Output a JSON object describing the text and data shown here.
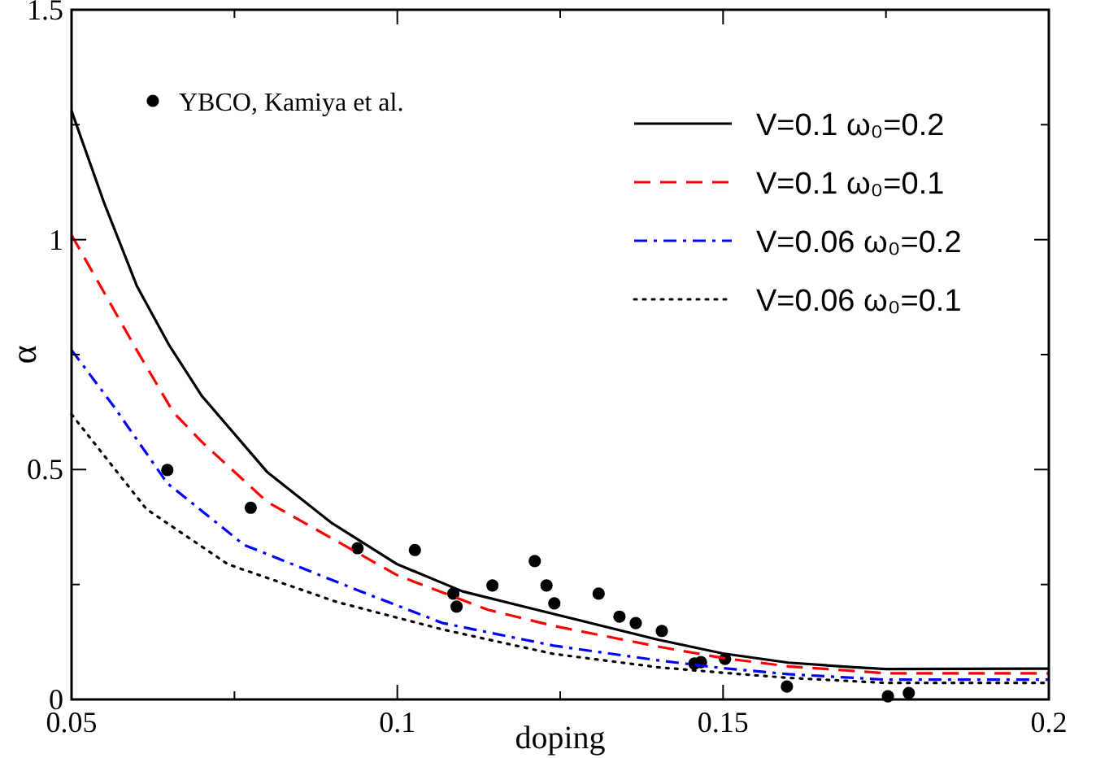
{
  "chart_data": {
    "type": "line",
    "xlabel": "doping",
    "ylabel": "α",
    "xlim": [
      0.05,
      0.2
    ],
    "ylim": [
      0,
      1.5
    ],
    "xticks": [
      0.05,
      {
        "value": 0.075,
        "label": null
      },
      0.1,
      {
        "value": 0.125,
        "label": null
      },
      0.15,
      {
        "value": 0.175,
        "label": null
      },
      0.2
    ],
    "yticks": [
      0,
      {
        "value": 0.25,
        "label": null
      },
      0.5,
      {
        "value": 0.75,
        "label": null
      },
      1,
      {
        "value": 1.25,
        "label": null
      },
      1.5
    ],
    "legend": "top",
    "grid": false,
    "series": [
      {
        "type": "scatter",
        "name": "YBCO, Kamiya et al.",
        "color": "#000000",
        "marker": "circle",
        "x": [
          0.0647,
          0.0775,
          0.0939,
          0.1027,
          0.1086,
          0.1091,
          0.1146,
          0.1211,
          0.1229,
          0.1241,
          0.1309,
          0.1341,
          0.1366,
          0.1406,
          0.1456,
          0.1466,
          0.1503,
          0.1598,
          0.1753,
          0.1785
        ],
        "values": [
          0.499,
          0.417,
          0.329,
          0.325,
          0.23,
          0.202,
          0.248,
          0.301,
          0.248,
          0.209,
          0.23,
          0.18,
          0.166,
          0.149,
          0.078,
          0.081,
          0.088,
          0.028,
          0.007,
          0.014
        ]
      },
      {
        "name": "V=0.1  ω₀=0.2",
        "color": "#000000",
        "line_style": "solid",
        "x": [
          0.05,
          0.055,
          0.06,
          0.065,
          0.07,
          0.08,
          0.09,
          0.1,
          0.11,
          0.12,
          0.13,
          0.14,
          0.15,
          0.16,
          0.17,
          0.175,
          0.2
        ],
        "values": [
          1.28,
          1.08,
          0.9,
          0.77,
          0.66,
          0.495,
          0.383,
          0.294,
          0.235,
          0.2,
          0.165,
          0.13,
          0.1,
          0.08,
          0.07,
          0.066,
          0.067
        ]
      },
      {
        "name": "V=0.1  ω₀=0.1",
        "color": "#ff0000",
        "line_style": "dashed",
        "x": [
          0.05,
          0.06,
          0.0656,
          0.07,
          0.08,
          0.094,
          0.1,
          0.1139,
          0.124,
          0.14,
          0.15,
          0.16,
          0.175,
          0.2
        ],
        "values": [
          1.01,
          0.76,
          0.625,
          0.56,
          0.43,
          0.318,
          0.27,
          0.195,
          0.16,
          0.115,
          0.09,
          0.072,
          0.057,
          0.057
        ]
      },
      {
        "name": "V=0.06 ω₀=0.2",
        "color": "#0000ff",
        "line_style": "dashdot",
        "x": [
          0.05,
          0.0565,
          0.0647,
          0.0765,
          0.094,
          0.107,
          0.124,
          0.14,
          0.15,
          0.16,
          0.175,
          0.2
        ],
        "values": [
          0.76,
          0.637,
          0.47,
          0.336,
          0.237,
          0.166,
          0.117,
          0.085,
          0.068,
          0.055,
          0.043,
          0.043
        ]
      },
      {
        "name": "V=0.06 ω₀=0.1",
        "color": "#000000",
        "line_style": "dotted",
        "x": [
          0.05,
          0.0615,
          0.074,
          0.0907,
          0.107,
          0.124,
          0.14,
          0.15,
          0.16,
          0.175,
          0.2
        ],
        "values": [
          0.62,
          0.414,
          0.294,
          0.212,
          0.152,
          0.099,
          0.07,
          0.058,
          0.047,
          0.036,
          0.036
        ]
      }
    ]
  }
}
